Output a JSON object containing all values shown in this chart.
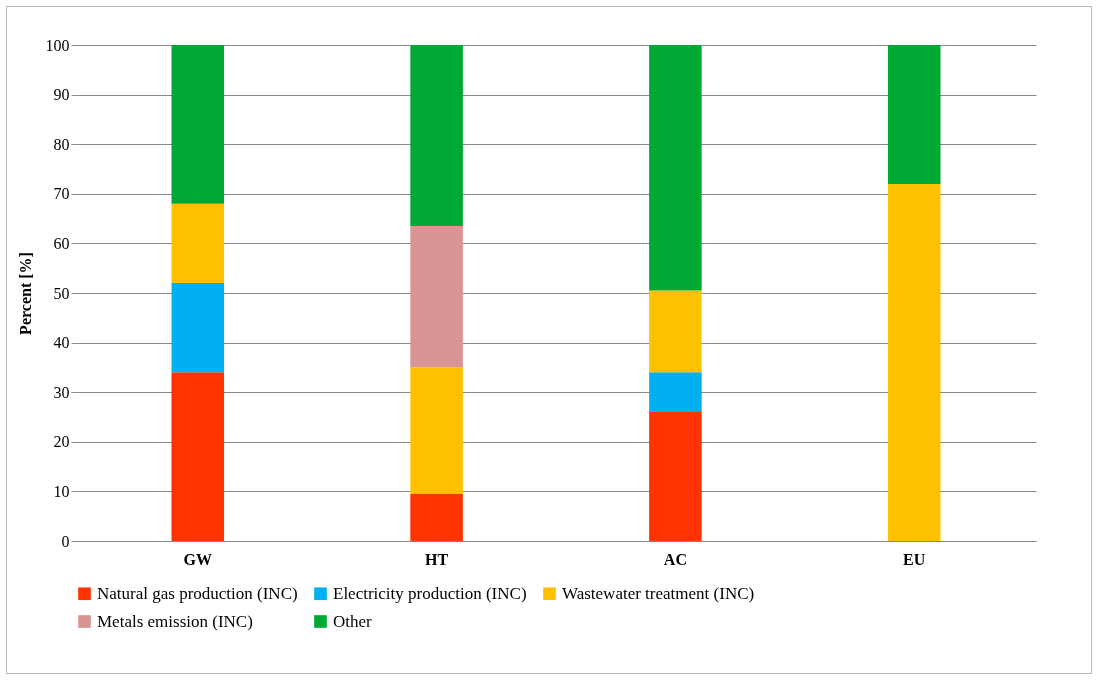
{
  "chart_data": {
    "type": "bar",
    "stacked": true,
    "ylabel": "Percent [%]",
    "categories": [
      "GW",
      "HT",
      "AC",
      "EU"
    ],
    "series": [
      {
        "name": "Natural gas production (INC)",
        "color": "#ff3300",
        "values": [
          34,
          9.5,
          26,
          0
        ]
      },
      {
        "name": "Electricity production (INC)",
        "color": "#00b0f0",
        "values": [
          18,
          0,
          8,
          0
        ]
      },
      {
        "name": "Wastewater treatment (INC)",
        "color": "#ffc000",
        "values": [
          16,
          25.5,
          16.5,
          72
        ]
      },
      {
        "name": "Metals emission (INC)",
        "color": "#d99594",
        "values": [
          0,
          28.5,
          0,
          0
        ]
      },
      {
        "name": "Other",
        "color": "#00a933",
        "values": [
          32,
          36.5,
          49.5,
          28
        ]
      }
    ],
    "ylim": [
      0,
      100
    ],
    "yticks": [
      0,
      10,
      20,
      30,
      40,
      50,
      60,
      70,
      80,
      90,
      100
    ],
    "grid": "y",
    "legend": "bottom"
  }
}
